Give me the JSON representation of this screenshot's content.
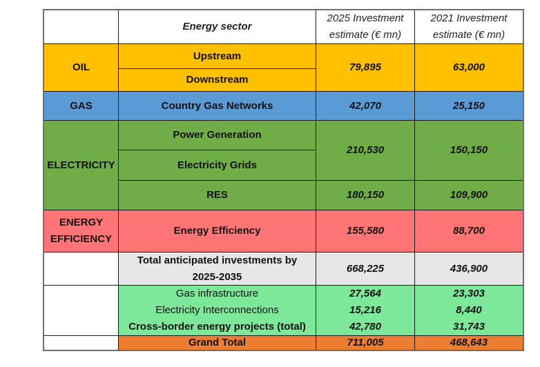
{
  "header": {
    "sector": "Energy sector",
    "col2025": [
      "2025 Investment",
      "estimate (€ mn)"
    ],
    "col2021": [
      "2021 Investment",
      "estimate (€ mn)"
    ]
  },
  "rows": {
    "oil": {
      "category": "OIL",
      "sub": [
        "Upstream",
        "Downstream"
      ],
      "v2025": "79,895",
      "v2021": "63,000"
    },
    "gas": {
      "category": "GAS",
      "sub": [
        "Country Gas Networks"
      ],
      "v2025": "42,070",
      "v2021": "25,150"
    },
    "electricity": {
      "category": "ELECTRICITY",
      "sub": [
        "Power Generation",
        "Electricity Grids",
        "RES"
      ],
      "v2025_a": "210,530",
      "v2021_a": "150,150",
      "v2025_b": "180,150",
      "v2021_b": "109,900"
    },
    "efficiency": {
      "category": [
        "ENERGY",
        "EFFICIENCY"
      ],
      "sub": [
        "Energy Efficiency"
      ],
      "v2025": "155,580",
      "v2021": "88,700"
    },
    "total": {
      "label": [
        "Total anticipated investments by",
        "2025-2035"
      ],
      "v2025": "668,225",
      "v2021": "436,900"
    },
    "crossborder": {
      "items": [
        {
          "label": "Gas infrastructure",
          "v2025": "27,564",
          "v2021": "23,303"
        },
        {
          "label": "Electricity Interconnections",
          "v2025": "15,216",
          "v2021": "8,440"
        },
        {
          "label": "Cross-border energy projects (total)",
          "v2025": "42,780",
          "v2021": "31,743"
        }
      ]
    },
    "grand": {
      "label": "Grand Total",
      "v2025": "711,005",
      "v2021": "468,643"
    }
  },
  "colors": {
    "oil": "#ffc000",
    "gas": "#5b9bd5",
    "electricity": "#70ad47",
    "efficiency": "#ff7575",
    "total": "#e7e7e7",
    "crossborder": "#7de89a",
    "grand": "#ed7d31"
  }
}
